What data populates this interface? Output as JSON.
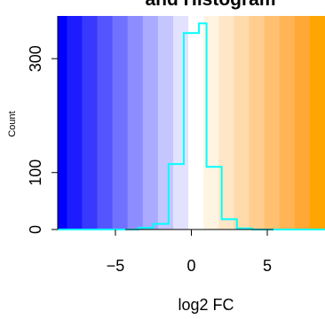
{
  "chart_data": {
    "type": "histogram",
    "title": "and Histogram",
    "xlabel": "log2 FC",
    "ylabel": "Count",
    "xlim": [
      -8.8,
      8.8
    ],
    "ylim": [
      0,
      375
    ],
    "x_ticks": [
      -5,
      0,
      5
    ],
    "x_tick_labels": [
      "−5",
      "0",
      "5"
    ],
    "y_ticks": [
      0,
      100,
      300
    ],
    "y_tick_labels": [
      "0",
      "100",
      "300"
    ],
    "grid": false,
    "legend": "none",
    "histogram": {
      "color": "#00ffff",
      "bins": [
        {
          "x0": -8.8,
          "x1": -6.0,
          "count": 0
        },
        {
          "x0": -6.0,
          "x1": -3.5,
          "count": 0
        },
        {
          "x0": -3.5,
          "x1": -2.5,
          "count": 3
        },
        {
          "x0": -2.5,
          "x1": -1.5,
          "count": 10
        },
        {
          "x0": -1.5,
          "x1": -0.5,
          "count": 115
        },
        {
          "x0": -0.5,
          "x1": 0.5,
          "count": 345
        },
        {
          "x0": 0.5,
          "x1": 1.0,
          "count": 362
        },
        {
          "x0": 1.0,
          "x1": 2.0,
          "count": 110
        },
        {
          "x0": 2.0,
          "x1": 3.0,
          "count": 18
        },
        {
          "x0": 3.0,
          "x1": 4.0,
          "count": 2
        },
        {
          "x0": 4.0,
          "x1": 8.8,
          "count": 0
        }
      ]
    },
    "background_gradient": {
      "description": "color bands by log2 FC, blue for negative, orange for positive",
      "bands": [
        {
          "x0": -8.8,
          "x1": -8.2,
          "color": "#0000ff"
        },
        {
          "x0": -8.2,
          "x1": -7.2,
          "color": "#1c1cff"
        },
        {
          "x0": -7.2,
          "x1": -6.2,
          "color": "#3838ff"
        },
        {
          "x0": -6.2,
          "x1": -5.2,
          "color": "#5555ff"
        },
        {
          "x0": -5.2,
          "x1": -4.2,
          "color": "#7171ff"
        },
        {
          "x0": -4.2,
          "x1": -3.2,
          "color": "#8d8dff"
        },
        {
          "x0": -3.2,
          "x1": -2.2,
          "color": "#aaaaff"
        },
        {
          "x0": -2.2,
          "x1": -1.2,
          "color": "#c6c6ff"
        },
        {
          "x0": -1.2,
          "x1": -0.2,
          "color": "#e2e2ff"
        },
        {
          "x0": -0.2,
          "x1": 0.8,
          "color": "#ffffff"
        },
        {
          "x0": 0.8,
          "x1": 1.8,
          "color": "#fff4e2"
        },
        {
          "x0": 1.8,
          "x1": 2.8,
          "color": "#ffe6c6"
        },
        {
          "x0": 2.8,
          "x1": 3.8,
          "color": "#ffdaaa"
        },
        {
          "x0": 3.8,
          "x1": 4.8,
          "color": "#ffcd8d"
        },
        {
          "x0": 4.8,
          "x1": 5.8,
          "color": "#ffc171"
        },
        {
          "x0": 5.8,
          "x1": 6.8,
          "color": "#ffb455"
        },
        {
          "x0": 6.8,
          "x1": 7.8,
          "color": "#ffa838"
        },
        {
          "x0": 7.8,
          "x1": 8.8,
          "color": "#ffa500"
        }
      ]
    }
  }
}
